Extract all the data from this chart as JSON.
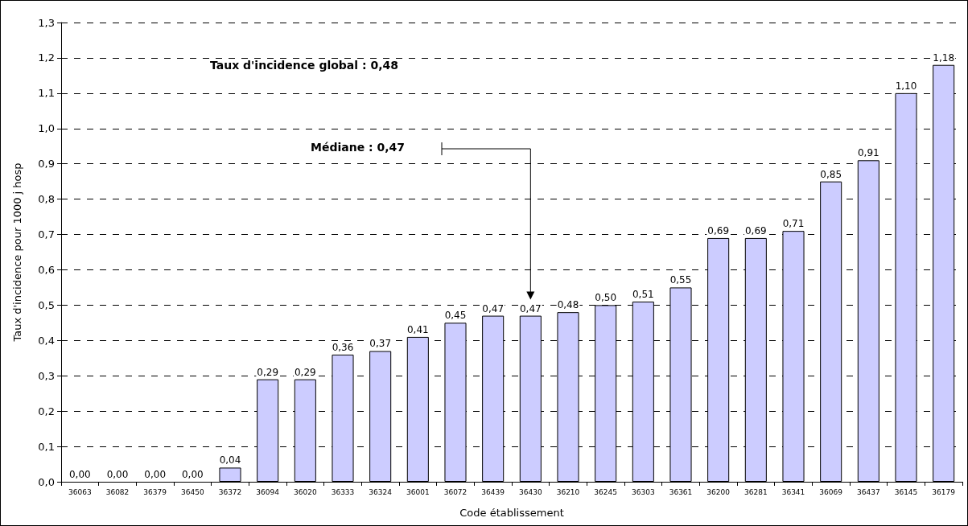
{
  "chart_data": {
    "type": "bar",
    "xlabel": "Code établissement",
    "ylabel": "Taux d'incidence pour 1000 j hosp",
    "categories": [
      "36063",
      "36082",
      "36379",
      "36450",
      "36372",
      "36094",
      "36020",
      "36333",
      "36324",
      "36001",
      "36072",
      "36439",
      "36430",
      "36210",
      "36245",
      "36303",
      "36361",
      "36200",
      "36281",
      "36341",
      "36069",
      "36437",
      "36145",
      "36179"
    ],
    "values": [
      0,
      0,
      0,
      0,
      0.04,
      0.29,
      0.29,
      0.36,
      0.37,
      0.41,
      0.45,
      0.47,
      0.47,
      0.48,
      0.5,
      0.51,
      0.55,
      0.69,
      0.69,
      0.71,
      0.85,
      0.91,
      1.1,
      1.18
    ],
    "value_labels": [
      "0,00",
      "0,00",
      "0,00",
      "0,00",
      "0,04",
      "0,29",
      "0,29",
      "0,36",
      "0,37",
      "0,41",
      "0,45",
      "0,47",
      "0,47",
      "0,48",
      "0,50",
      "0,51",
      "0,55",
      "0,69",
      "0,69",
      "0,71",
      "0,85",
      "0,91",
      "1,10",
      "1,18"
    ],
    "color": "#ccccff",
    "ylim": [
      0,
      1.3
    ],
    "yticks": [
      {
        "value": 0,
        "label": "0,0"
      },
      {
        "value": 0.1,
        "label": "0,1"
      },
      {
        "value": 0.2,
        "label": "0,2"
      },
      {
        "value": 0.3,
        "label": "0,3"
      },
      {
        "value": 0.4,
        "label": "0,4"
      },
      {
        "value": 0.5,
        "label": "0,5"
      },
      {
        "value": 0.6,
        "label": "0,6"
      },
      {
        "value": 0.7,
        "label": "0,7"
      },
      {
        "value": 0.8,
        "label": "0,8"
      },
      {
        "value": 0.9,
        "label": "0,9"
      },
      {
        "value": 1,
        "label": "1,0"
      },
      {
        "value": 1.1,
        "label": "1,1"
      },
      {
        "value": 1.2,
        "label": "1,2"
      },
      {
        "value": 1.3,
        "label": "1,3"
      }
    ],
    "grid": "y",
    "annotations": [
      "Taux d'incidence global : 0,48",
      "Médiane : 0,47"
    ]
  }
}
